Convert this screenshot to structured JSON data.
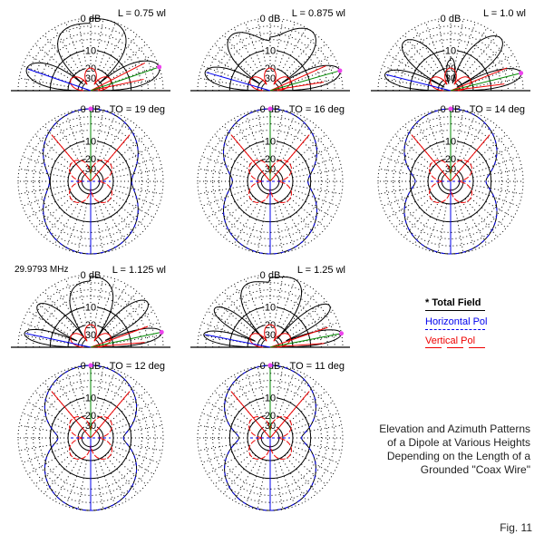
{
  "panels": [
    {
      "length_label": "L = 0.75 wl",
      "takeoff_label": "TO = 19 deg",
      "takeoff_deg": 19
    },
    {
      "length_label": "L = 0.875 wl",
      "takeoff_label": "TO = 16 deg",
      "takeoff_deg": 16
    },
    {
      "length_label": "L = 1.0 wl",
      "takeoff_label": "TO = 14 deg",
      "takeoff_deg": 14
    },
    {
      "length_label": "L = 1.125 wl",
      "takeoff_label": "TO = 12 deg",
      "takeoff_deg": 12
    },
    {
      "length_label": "L = 1.25 wl",
      "takeoff_label": "TO = 11 deg",
      "takeoff_deg": 11
    }
  ],
  "scale_labels": {
    "outer": "0 dB",
    "r10": "10",
    "r20": "20",
    "r30": "30"
  },
  "frequency": "29.9793 MHz",
  "legend": {
    "total": "* Total Field",
    "horizontal": "Horizontal Pol",
    "vertical": "Vertical Pol"
  },
  "caption": [
    "Elevation and Azimuth Patterns",
    "of a Dipole at Various Heights",
    "Depending on the Length of a",
    "Grounded \"Coax Wire\""
  ],
  "figure_label": "Fig. 11",
  "colors": {
    "total": "#000000",
    "horizontal": "#0000ee",
    "vertical": "#ee0000",
    "max_line": "#008800",
    "marker": "#ee44ee"
  }
}
